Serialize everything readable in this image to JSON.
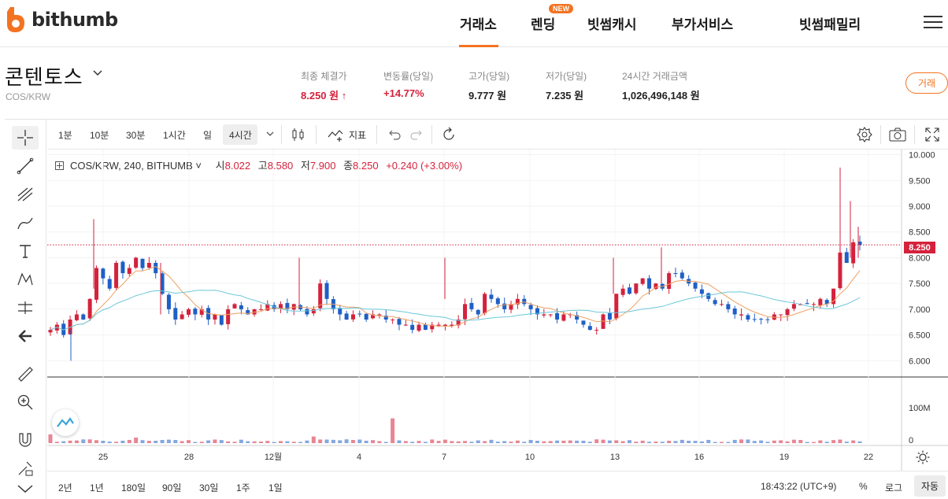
{
  "brand": {
    "logo_text": "bithumb",
    "accent_color": "#f37321"
  },
  "nav": {
    "items": [
      {
        "label": "거래소",
        "active": true
      },
      {
        "label": "렌딩",
        "badge": "NEW"
      },
      {
        "label": "빗썸캐시"
      },
      {
        "label": "부가서비스"
      },
      {
        "label": "빗썸패밀리"
      }
    ],
    "menu_icon": "hamburger-icon"
  },
  "coin": {
    "name": "콘텐토스",
    "pair": "COS/KRW",
    "stats": [
      {
        "label": "최종 체결가",
        "value": "8.250 원 ↑",
        "color": "#d4223c"
      },
      {
        "label": "변동률(당일)",
        "value": "+14.77%",
        "color": "#d4223c"
      },
      {
        "label": "고가(당일)",
        "value": "9.777 원",
        "color": "#222222"
      },
      {
        "label": "저가(당일)",
        "value": "7.235 원",
        "color": "#222222"
      },
      {
        "label": "24시간 거래금액",
        "value": "1,026,496,148 원",
        "color": "#222222"
      }
    ],
    "trade_button": "거래"
  },
  "toolbar": {
    "intervals": [
      "1분",
      "10분",
      "30분",
      "1시간",
      "일",
      "4시간"
    ],
    "selected_interval": "4시간",
    "indicator_label": "지표"
  },
  "legend": {
    "symbol": "COS/KRW, 240, BITHUMB",
    "open_label": "시",
    "open": "8.022",
    "high_label": "고",
    "high": "8.580",
    "low_label": "저",
    "low": "7.900",
    "close_label": "종",
    "close": "8.250",
    "change": "+0.240 (+3.00%)"
  },
  "price_tag": "8.250",
  "range_buttons": [
    "2년",
    "1년",
    "180일",
    "90일",
    "30일",
    "1주",
    "1일"
  ],
  "status": {
    "time": "18:43:22 (UTC+9)",
    "percent": "%",
    "log": "로그",
    "auto": "자동"
  },
  "chart_data": {
    "type": "candlestick",
    "y_ticks": [
      "10.000",
      "9.500",
      "9.000",
      "8.500",
      "8.000",
      "7.500",
      "7.000",
      "6.500",
      "6.000"
    ],
    "volume_ticks": [
      "100M",
      "0"
    ],
    "x_ticks": [
      "25",
      "28",
      "12월",
      "4",
      "7",
      "10",
      "13",
      "16",
      "19",
      "22"
    ],
    "ylim": [
      5.7,
      10.1
    ],
    "last_price": 8.25,
    "up_color": "#d4223c",
    "down_color": "#1f5fc6",
    "ma_colors": [
      "#f0a060",
      "#6cc7d9"
    ],
    "series_close": [
      6.6,
      6.7,
      6.5,
      6.8,
      6.9,
      6.8,
      7.2,
      7.8,
      7.6,
      7.4,
      7.9,
      7.7,
      7.8,
      8.0,
      7.8,
      7.9,
      7.7,
      7.3,
      7.0,
      6.8,
      6.9,
      7.0,
      6.9,
      7.0,
      6.8,
      6.9,
      6.7,
      7.0,
      7.1,
      7.0,
      6.9,
      7.0,
      7.0,
      7.1,
      7.0,
      7.1,
      7.0,
      7.1,
      7.0,
      6.9,
      7.0,
      7.5,
      7.2,
      7.0,
      6.9,
      6.8,
      6.9,
      6.9,
      6.8,
      6.9,
      6.9,
      6.8,
      6.8,
      6.7,
      6.7,
      6.6,
      6.7,
      6.6,
      6.7,
      6.7,
      6.7,
      6.7,
      6.8,
      7.1,
      7.0,
      6.9,
      7.3,
      7.2,
      7.1,
      7.0,
      7.1,
      7.2,
      7.1,
      7.0,
      6.9,
      6.9,
      6.9,
      6.8,
      6.9,
      6.9,
      6.8,
      6.7,
      6.6,
      6.6,
      6.9,
      6.8,
      7.3,
      7.4,
      7.3,
      7.5,
      7.6,
      7.4,
      7.5,
      7.4,
      7.7,
      7.7,
      7.6,
      7.5,
      7.4,
      7.3,
      7.2,
      7.1,
      7.1,
      7.0,
      6.9,
      6.9,
      6.8,
      6.8,
      6.8,
      6.8,
      6.9,
      6.9,
      7.0,
      7.1,
      7.1,
      7.1,
      7.1,
      7.2,
      7.1,
      7.4,
      8.1,
      7.9,
      8.3,
      8.25
    ],
    "volume_note": "spikes near 7 and 14-15 and 21"
  }
}
